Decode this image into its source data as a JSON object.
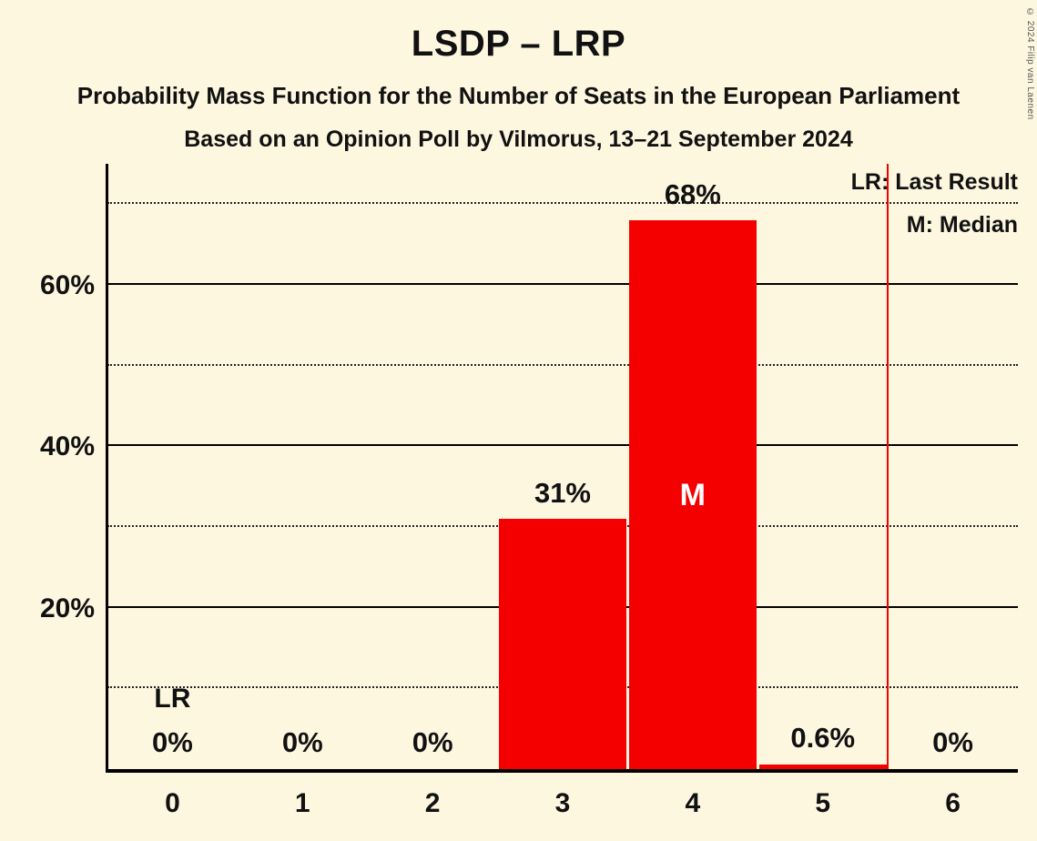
{
  "header": {
    "title": "LSDP – LRP",
    "subtitle1": "Probability Mass Function for the Number of Seats in the European Parliament",
    "subtitle2": "Based on an Opinion Poll by Vilmorus, 13–21 September 2024"
  },
  "legend": {
    "lr": "LR: Last Result",
    "m": "M: Median"
  },
  "copyright": "© 2024 Filip van Laenen",
  "chart_data": {
    "type": "bar",
    "title": "LSDP – LRP",
    "categories": [
      "0",
      "1",
      "2",
      "3",
      "4",
      "5",
      "6"
    ],
    "values": [
      0,
      0,
      0,
      31,
      68,
      0.6,
      0
    ],
    "value_labels": [
      "0%",
      "0%",
      "0%",
      "31%",
      "68%",
      "0.6%",
      "0%"
    ],
    "xlabel": "",
    "ylabel": "",
    "ylim": [
      0,
      75
    ],
    "y_ticks": [
      20,
      40,
      60
    ],
    "y_tick_labels": [
      "20%",
      "40%",
      "60%"
    ],
    "y_solid_gridlines": [
      20,
      40,
      60
    ],
    "y_dotted_gridlines": [
      10,
      30,
      50,
      70
    ],
    "median_category": "4",
    "median_marker": "M",
    "last_result_label": "LR",
    "last_result_category": "0",
    "last_result_line_seat": 5.5,
    "legend_position": "top-right",
    "grid": true,
    "bar_color": "#f40000",
    "lr_line_color": "#f40000",
    "background_color": "#fdf7e0",
    "text_color": "#111111"
  }
}
